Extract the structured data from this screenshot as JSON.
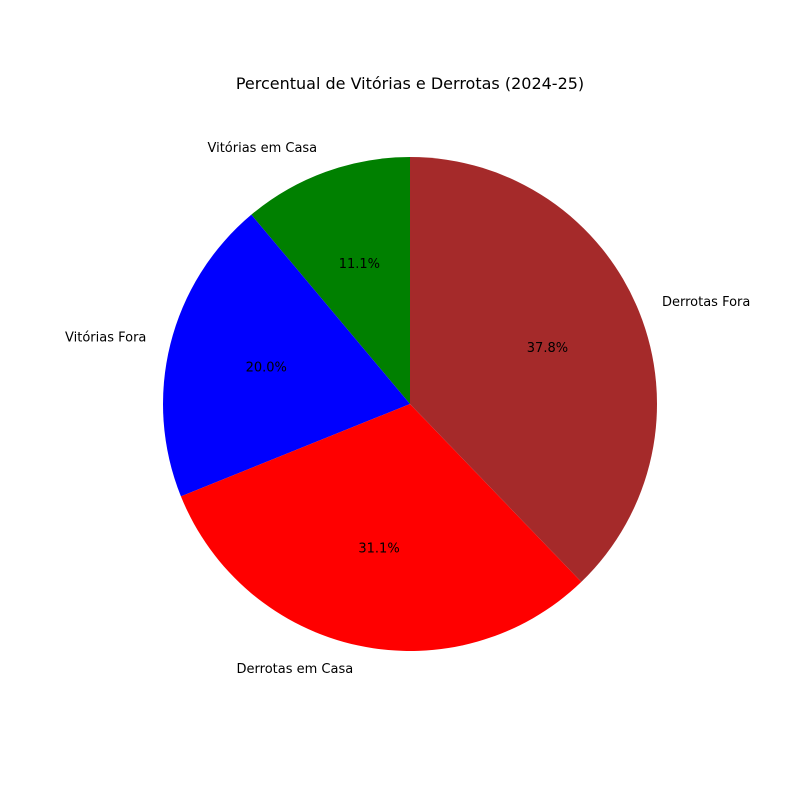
{
  "chart_data": {
    "type": "pie",
    "title": "Percentual de Vitórias e Derrotas (2024-25)",
    "start_angle_deg": 90,
    "direction": "counterclockwise",
    "slices": [
      {
        "label": "Vitórias em Casa",
        "value": 11.1,
        "pct_label": "11.1%",
        "color": "#008000"
      },
      {
        "label": "Vitórias Fora",
        "value": 20.0,
        "pct_label": "20.0%",
        "color": "#0000ff"
      },
      {
        "label": "Derrotas em Casa",
        "value": 31.1,
        "pct_label": "31.1%",
        "color": "#ff0000"
      },
      {
        "label": "Derrotas Fora",
        "value": 37.8,
        "pct_label": "37.8%",
        "color": "#a52a2a"
      }
    ]
  }
}
